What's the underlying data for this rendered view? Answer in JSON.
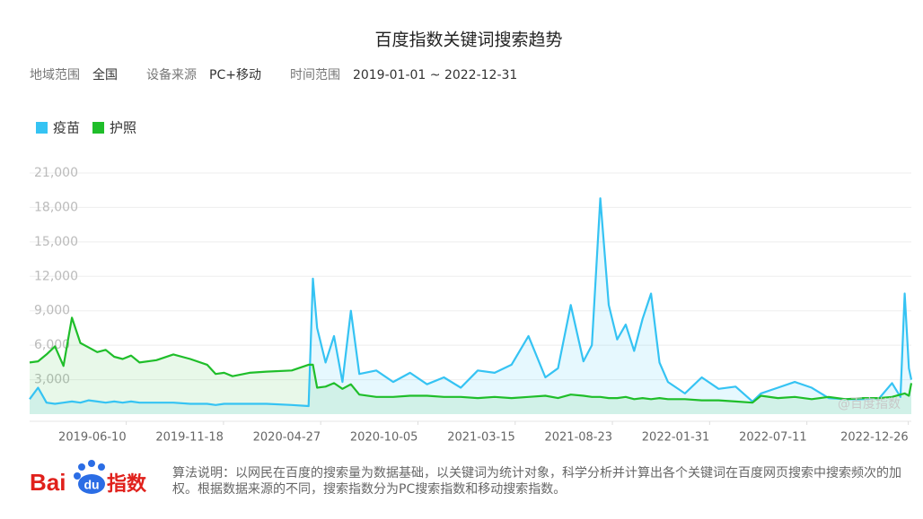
{
  "chart_data": {
    "type": "line",
    "title": "百度指数关键词搜索趋势",
    "filters": [
      {
        "label": "地域范围",
        "value": "全国"
      },
      {
        "label": "设备来源",
        "value": "PC+移动"
      },
      {
        "label": "时间范围",
        "value": "2019-01-01 ~ 2022-12-31"
      }
    ],
    "x": [
      "2019-01-01",
      "2019-01-15",
      "2019-01-29",
      "2019-02-12",
      "2019-02-26",
      "2019-03-12",
      "2019-03-26",
      "2019-04-09",
      "2019-04-23",
      "2019-05-07",
      "2019-05-21",
      "2019-06-04",
      "2019-06-18",
      "2019-07-02",
      "2019-07-30",
      "2019-08-27",
      "2019-09-24",
      "2019-10-22",
      "2019-11-05",
      "2019-11-19",
      "2019-12-03",
      "2019-12-31",
      "2020-01-28",
      "2020-03-10",
      "2020-04-07",
      "2020-04-14",
      "2020-04-21",
      "2020-05-05",
      "2020-05-19",
      "2020-06-02",
      "2020-06-16",
      "2020-06-30",
      "2020-07-28",
      "2020-08-25",
      "2020-09-22",
      "2020-10-20",
      "2020-11-17",
      "2020-12-15",
      "2021-01-12",
      "2021-02-09",
      "2021-03-09",
      "2021-04-06",
      "2021-05-04",
      "2021-05-25",
      "2021-06-15",
      "2021-07-06",
      "2021-07-20",
      "2021-08-03",
      "2021-08-17",
      "2021-08-31",
      "2021-09-14",
      "2021-09-28",
      "2021-10-12",
      "2021-10-26",
      "2021-11-09",
      "2021-11-23",
      "2021-12-21",
      "2022-01-18",
      "2022-02-15",
      "2022-03-15",
      "2022-04-12",
      "2022-04-26",
      "2022-05-24",
      "2022-06-21",
      "2022-07-19",
      "2022-08-16",
      "2022-09-13",
      "2022-10-11",
      "2022-11-08",
      "2022-11-29",
      "2022-12-13",
      "2022-12-20",
      "2022-12-27",
      "2022-12-31"
    ],
    "series": [
      {
        "name": "疫苗",
        "color": "#35c3f3",
        "values": [
          1300,
          2300,
          1000,
          900,
          1000,
          1100,
          1000,
          1200,
          1100,
          1000,
          1100,
          1000,
          1100,
          1000,
          1000,
          1000,
          900,
          900,
          800,
          900,
          900,
          900,
          900,
          800,
          700,
          11800,
          7500,
          4500,
          6800,
          2800,
          9000,
          3500,
          3800,
          2800,
          3600,
          2600,
          3200,
          2300,
          3800,
          3600,
          4300,
          6800,
          3200,
          4000,
          9500,
          4600,
          6000,
          18800,
          9500,
          6500,
          7800,
          5500,
          8300,
          10500,
          4500,
          2800,
          1800,
          3200,
          2200,
          2400,
          1100,
          1800,
          2300,
          2800,
          2300,
          1400,
          1300,
          1300,
          1400,
          2700,
          1500,
          10500,
          4000,
          3000
        ]
      },
      {
        "name": "护照",
        "color": "#1fbe2a",
        "values": [
          4500,
          4600,
          5200,
          5900,
          4200,
          8400,
          6200,
          5800,
          5400,
          5600,
          5000,
          4800,
          5100,
          4500,
          4700,
          5200,
          4800,
          4300,
          3500,
          3600,
          3300,
          3600,
          3700,
          3800,
          4300,
          4300,
          2300,
          2400,
          2700,
          2200,
          2600,
          1700,
          1500,
          1500,
          1600,
          1600,
          1500,
          1500,
          1400,
          1500,
          1400,
          1500,
          1600,
          1400,
          1700,
          1600,
          1500,
          1500,
          1400,
          1400,
          1500,
          1300,
          1400,
          1300,
          1400,
          1300,
          1300,
          1200,
          1200,
          1100,
          1000,
          1600,
          1400,
          1500,
          1300,
          1500,
          1300,
          1400,
          1400,
          1500,
          1700,
          1800,
          1600,
          2700
        ]
      }
    ],
    "xlim": [
      "2019-01-01",
      "2022-12-31"
    ],
    "xticks": [
      "2019-06-10",
      "2019-11-18",
      "2020-04-27",
      "2020-10-05",
      "2021-03-15",
      "2021-08-23",
      "2022-01-31",
      "2022-07-11",
      "2022-12-26"
    ],
    "ylim": [
      0,
      21000
    ],
    "yticks": [
      {
        "value": 3000,
        "label": "3,000"
      },
      {
        "value": 6000,
        "label": "6,000"
      },
      {
        "value": 9000,
        "label": "9,000"
      },
      {
        "value": 12000,
        "label": "12,000"
      },
      {
        "value": 15000,
        "label": "15,000"
      },
      {
        "value": 18000,
        "label": "18,000"
      },
      {
        "value": 21000,
        "label": "21,000"
      }
    ],
    "grid": true,
    "watermark": "@百度指数",
    "logo": {
      "left": "Bai",
      "paw": "du",
      "right": "指数"
    },
    "footnote": "算法说明：以网民在百度的搜索量为数据基础，以关键词为统计对象，科学分析并计算出各个关键词在百度网页搜索中搜索频次的加权。根据数据来源的不同，搜索指数分为PC搜索指数和移动搜索指数。"
  }
}
